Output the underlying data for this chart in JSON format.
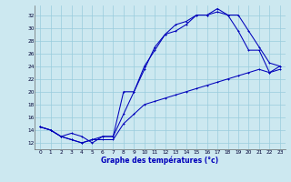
{
  "xlabel": "Graphe des températures (°c)",
  "bg_color": "#cce8f0",
  "line_color": "#0000bb",
  "grid_color": "#99ccdd",
  "xlim": [
    -0.5,
    23.5
  ],
  "ylim": [
    11,
    33.5
  ],
  "yticks": [
    12,
    14,
    16,
    18,
    20,
    22,
    24,
    26,
    28,
    30,
    32
  ],
  "xticks": [
    0,
    1,
    2,
    3,
    4,
    5,
    6,
    7,
    8,
    9,
    10,
    11,
    12,
    13,
    14,
    15,
    16,
    17,
    18,
    19,
    20,
    21,
    22,
    23
  ],
  "curve1_x": [
    0,
    1,
    2,
    3,
    4,
    5,
    6,
    7,
    8,
    9,
    10,
    11,
    12,
    13,
    14,
    15,
    16,
    17,
    18,
    19,
    20,
    21,
    22,
    23
  ],
  "curve1_y": [
    14.5,
    14.0,
    13.0,
    12.5,
    12.0,
    12.5,
    13.0,
    13.0,
    16.5,
    20.0,
    24.0,
    26.5,
    29.0,
    29.5,
    30.5,
    32.0,
    32.0,
    33.0,
    32.0,
    29.5,
    26.5,
    26.5,
    23.0,
    24.0
  ],
  "curve2_x": [
    0,
    1,
    2,
    3,
    4,
    5,
    6,
    7,
    8,
    9,
    10,
    11,
    12,
    13,
    14,
    15,
    16,
    17,
    18,
    19,
    20,
    21,
    22,
    23
  ],
  "curve2_y": [
    14.5,
    14.0,
    13.0,
    13.5,
    13.0,
    12.0,
    13.0,
    13.0,
    20.0,
    20.0,
    23.5,
    27.0,
    29.0,
    30.5,
    31.0,
    32.0,
    32.0,
    32.5,
    32.0,
    32.0,
    29.5,
    27.0,
    24.5,
    24.0
  ],
  "curve3_x": [
    0,
    1,
    2,
    3,
    4,
    5,
    6,
    7,
    8,
    9,
    10,
    11,
    12,
    13,
    14,
    15,
    16,
    17,
    18,
    19,
    20,
    21,
    22,
    23
  ],
  "curve3_y": [
    14.5,
    14.0,
    13.0,
    12.5,
    12.0,
    12.5,
    12.5,
    12.5,
    15.0,
    16.5,
    18.0,
    18.5,
    19.0,
    19.5,
    20.0,
    20.5,
    21.0,
    21.5,
    22.0,
    22.5,
    23.0,
    23.5,
    23.0,
    23.5
  ]
}
